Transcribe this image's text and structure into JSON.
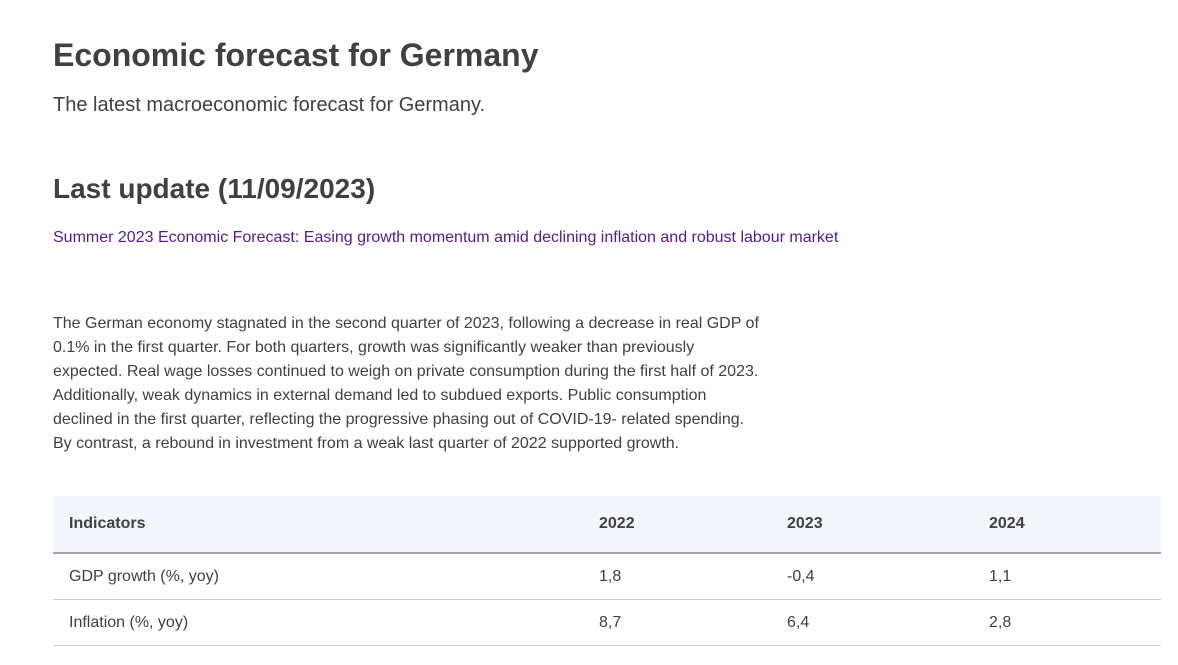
{
  "header": {
    "title": "Economic forecast for Germany",
    "subtitle": "The latest macroeconomic forecast for Germany."
  },
  "update": {
    "title": "Last update (11/09/2023)",
    "link_text": "Summer 2023 Economic Forecast: Easing growth momentum amid declining inflation and robust labour market",
    "link_color": "#551a8b"
  },
  "intro_text": "The German economy stagnated in the second quarter of 2023, following a decrease in real GDP of 0.1% in the first quarter. For both quarters, growth was significantly weaker than previously expected. Real wage losses continued to weigh on private consumption during the first half of 2023. Additionally, weak dynamics in external demand led to subdued exports. Public consumption declined in the first quarter, reflecting the progressive phasing out of COVID-19- related spending. By contrast, a rebound in investment from a weak last quarter of 2022 supported growth.",
  "table": {
    "headers": [
      "Indicators",
      "2022",
      "2023",
      "2024"
    ],
    "rows": [
      [
        "GDP growth (%, yoy)",
        "1,8",
        "-0,4",
        "1,1"
      ],
      [
        "Inflation (%, yoy)",
        "8,7",
        "6,4",
        "2,8"
      ]
    ]
  }
}
